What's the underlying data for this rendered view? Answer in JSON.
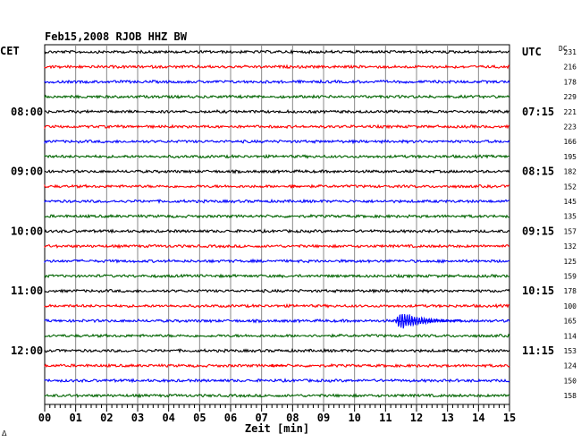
{
  "chart_data": {
    "type": "line",
    "title": "Feb15,2008  RJOB HHZ BW",
    "left_timezone": "CET",
    "right_timezone": "UTC",
    "dc_header": "DC",
    "xlabel": "Zeit [min]",
    "xlim": [
      0,
      15
    ],
    "x_ticks": [
      "00",
      "01",
      "02",
      "03",
      "04",
      "05",
      "06",
      "07",
      "08",
      "09",
      "10",
      "11",
      "12",
      "13",
      "14",
      "15"
    ],
    "left_time_labels": [
      {
        "trace": 4,
        "label": "08:00"
      },
      {
        "trace": 8,
        "label": "09:00"
      },
      {
        "trace": 12,
        "label": "10:00"
      },
      {
        "trace": 16,
        "label": "11:00"
      },
      {
        "trace": 20,
        "label": "12:00"
      }
    ],
    "right_time_labels": [
      {
        "trace": 0,
        "label": "UTC"
      },
      {
        "trace": 4,
        "label": "07:15"
      },
      {
        "trace": 8,
        "label": "08:15"
      },
      {
        "trace": 12,
        "label": "09:15"
      },
      {
        "trace": 16,
        "label": "10:15"
      },
      {
        "trace": 20,
        "label": "11:15"
      }
    ],
    "trace_colors": [
      "#000000",
      "#ff0000",
      "#0000ff",
      "#006400"
    ],
    "dc_offsets": [
      231,
      216,
      178,
      229,
      221,
      223,
      166,
      195,
      182,
      152,
      145,
      135,
      157,
      132,
      125,
      159,
      178,
      100,
      165,
      114,
      153,
      124,
      150,
      158
    ],
    "events": [
      {
        "trace": 9,
        "start_min": 7.9,
        "end_min": 8.3,
        "amplitude": 4
      },
      {
        "trace": 18,
        "start_min": 11.3,
        "end_min": 13.5,
        "amplitude": 15
      },
      {
        "trace": 21,
        "start_min": 7.3,
        "end_min": 7.8,
        "amplitude": 3
      }
    ],
    "grid": true,
    "footer_mark": "ᐃ"
  }
}
